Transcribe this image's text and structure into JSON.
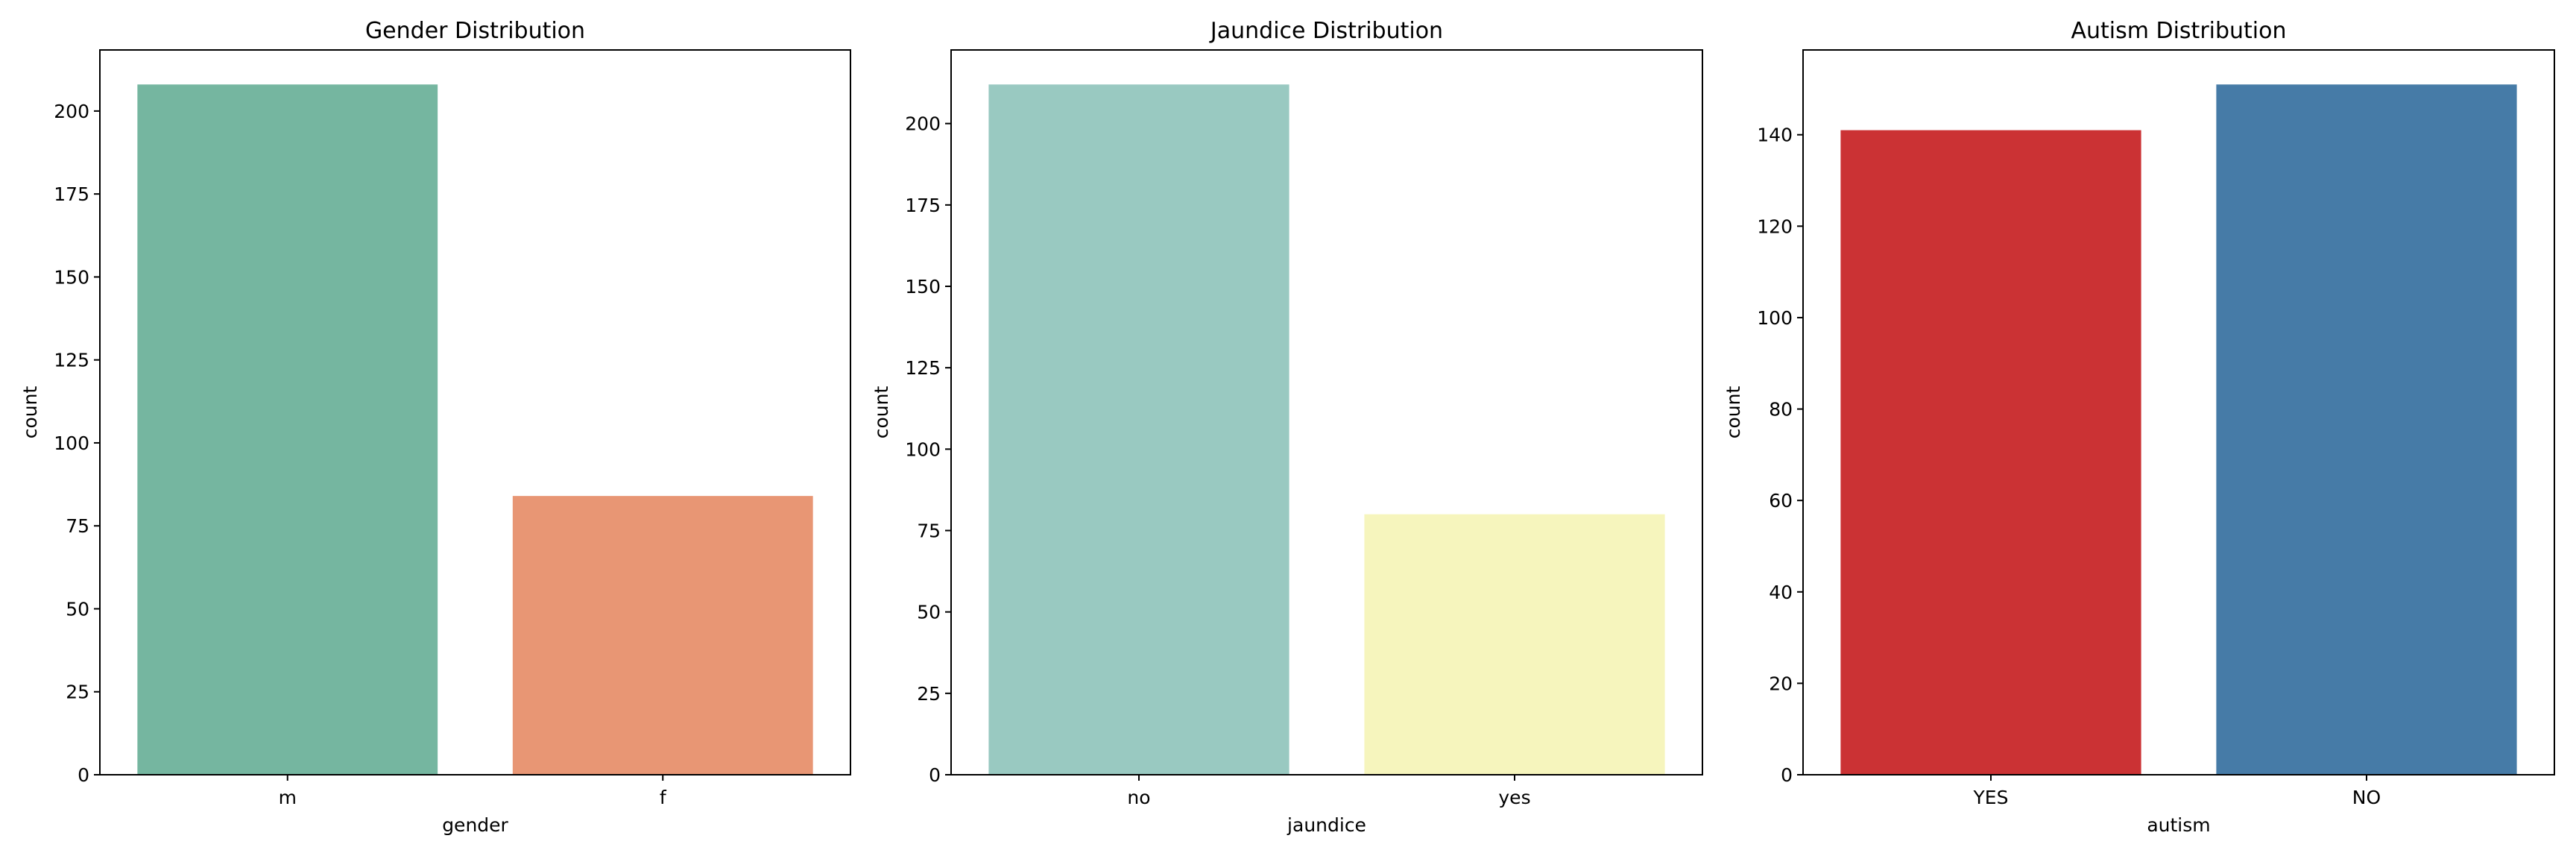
{
  "chart_data": [
    {
      "type": "bar",
      "title": "Gender Distribution",
      "xlabel": "gender",
      "ylabel": "count",
      "categories": [
        "m",
        "f"
      ],
      "values": [
        208,
        84
      ],
      "colors": [
        "#75b6a0",
        "#e89674"
      ],
      "ylim": [
        0,
        218.4
      ],
      "yticks": [
        0,
        25,
        50,
        75,
        100,
        125,
        150,
        175,
        200
      ],
      "grid": false
    },
    {
      "type": "bar",
      "title": "Jaundice Distribution",
      "xlabel": "jaundice",
      "ylabel": "count",
      "categories": [
        "no",
        "yes"
      ],
      "values": [
        212,
        80
      ],
      "colors": [
        "#99c9c1",
        "#f6f5bd"
      ],
      "ylim": [
        0,
        222.6
      ],
      "yticks": [
        0,
        25,
        50,
        75,
        100,
        125,
        150,
        175,
        200
      ],
      "grid": false
    },
    {
      "type": "bar",
      "title": "Autism Distribution",
      "xlabel": "autism",
      "ylabel": "count",
      "categories": [
        "YES",
        "NO"
      ],
      "values": [
        141,
        151
      ],
      "colors": [
        "#cb3234",
        "#467ba7"
      ],
      "ylim": [
        0,
        158.55
      ],
      "yticks": [
        0,
        20,
        40,
        60,
        80,
        100,
        120,
        140
      ],
      "grid": false
    }
  ]
}
